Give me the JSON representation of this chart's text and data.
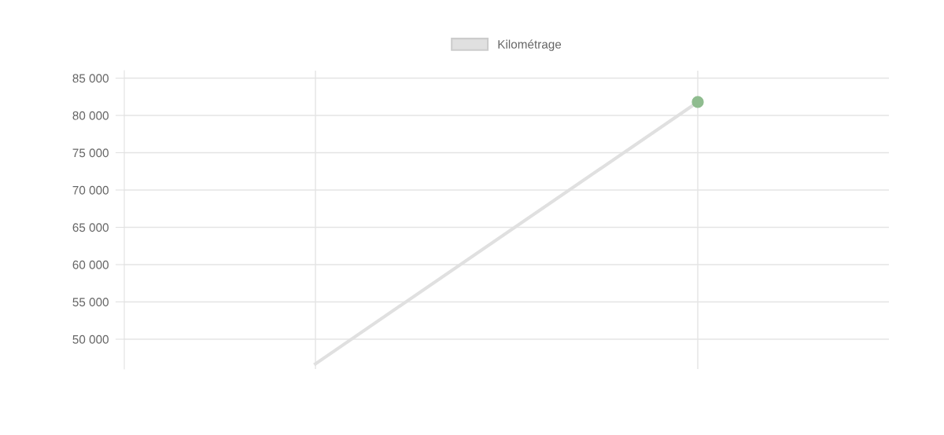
{
  "chart_data": {
    "type": "line",
    "categories": [
      null,
      null
    ],
    "series": [
      {
        "name": "Kilométrage",
        "color": "#e0e0e0",
        "colors": [
          "#e0e0e0",
          "#8fbc8f"
        ],
        "values": [
          46700,
          81800
        ]
      }
    ],
    "ylim": [
      46000,
      86000
    ],
    "yticks": [
      {
        "value": 50000,
        "label": "50 000"
      },
      {
        "value": 55000,
        "label": "55 000"
      },
      {
        "value": 60000,
        "label": "60 000"
      },
      {
        "value": 65000,
        "label": "65 000"
      },
      {
        "value": 70000,
        "label": "70 000"
      },
      {
        "value": 75000,
        "label": "75 000"
      },
      {
        "value": 80000,
        "label": "80 000"
      },
      {
        "value": 85000,
        "label": "85 000"
      }
    ],
    "grid": true,
    "legend": "top",
    "marker": "circle",
    "line_style": "solid",
    "tick_labels": "y"
  }
}
